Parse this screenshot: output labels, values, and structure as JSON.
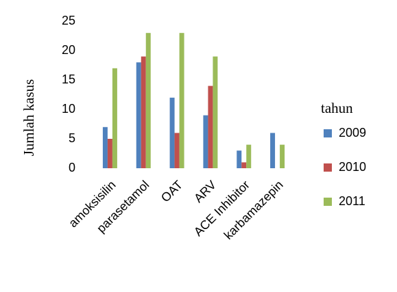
{
  "chart_data": {
    "type": "bar",
    "categories": [
      "amoksisilin",
      "parasetamol",
      "OAT",
      "ARV",
      "ACE Inhibitor",
      "karbamazepin"
    ],
    "series": [
      {
        "name": "2009",
        "color": "#4f81bd",
        "values": [
          7,
          18,
          12,
          9,
          3,
          6
        ]
      },
      {
        "name": "2010",
        "color": "#c0504d",
        "values": [
          5,
          19,
          6,
          14,
          1,
          0
        ]
      },
      {
        "name": "2011",
        "color": "#9bbb59",
        "values": [
          17,
          23,
          23,
          19,
          4,
          4
        ]
      }
    ],
    "y_label": "Jumlah kasus",
    "legend_title": "tahun",
    "legend": "right",
    "ylim": [
      0,
      25
    ],
    "yticks": [
      0,
      5,
      10,
      15,
      20,
      25
    ],
    "grid": false
  }
}
